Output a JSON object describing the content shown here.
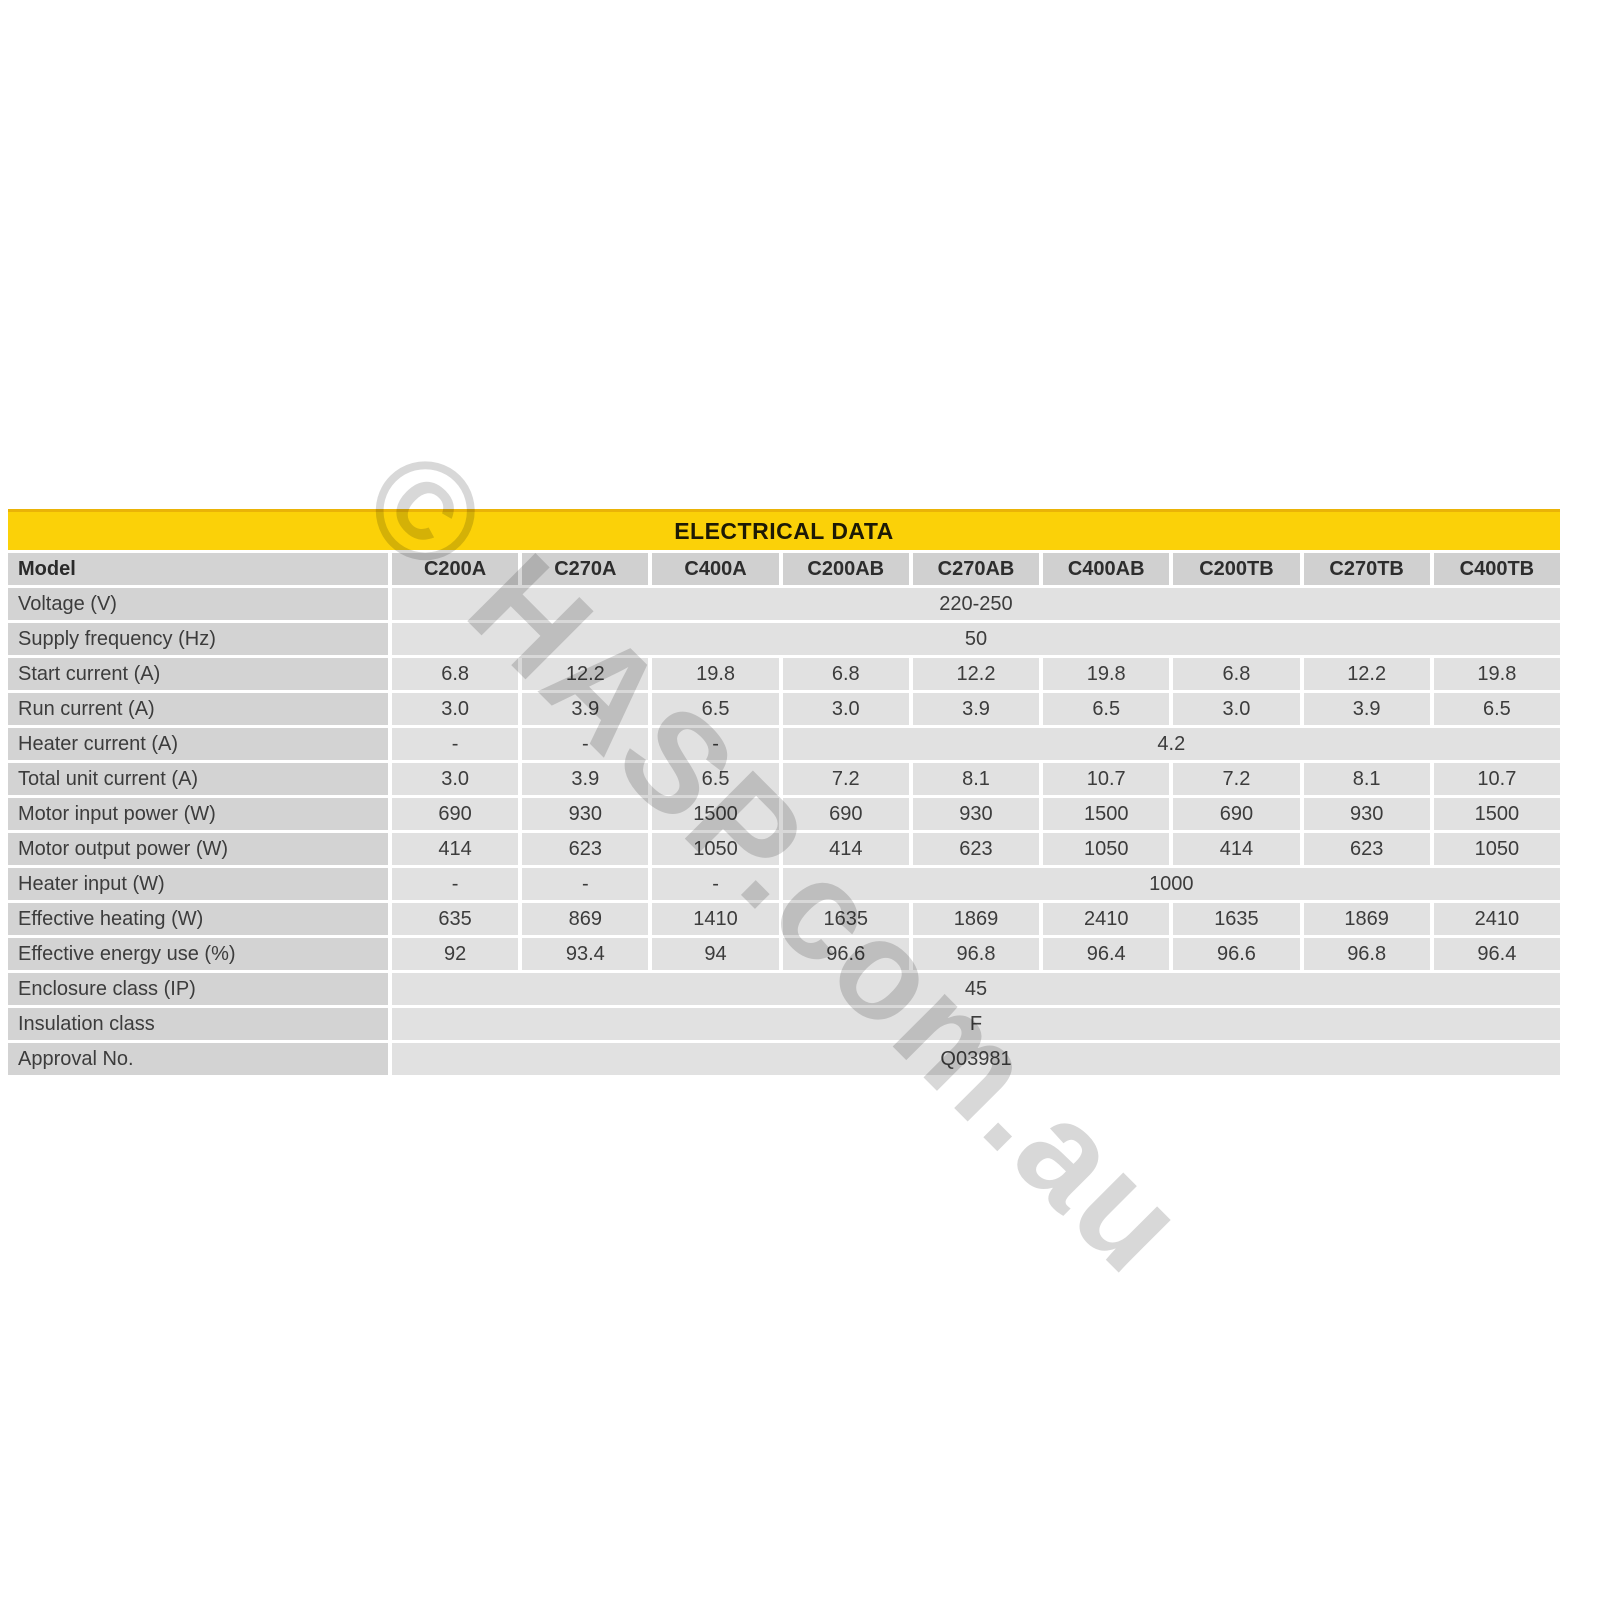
{
  "title": "ELECTRICAL DATA",
  "watermark": {
    "text": "© HASP.com.au"
  },
  "colors": {
    "accent_yellow": "#fbd108",
    "accent_yellow_edge": "#eab307",
    "title_text": "#1d1a05",
    "label_bg": "#d3d3d3",
    "header_cell_bg": "#d0d0d0",
    "cell_bg": "#e1e1e1",
    "text": "#3c3c3c",
    "watermark_gray": "#d8d8d8"
  },
  "table": {
    "model_label": "Model",
    "models": [
      "C200A",
      "C270A",
      "C400A",
      "C200AB",
      "C270AB",
      "C400AB",
      "C200TB",
      "C270TB",
      "C400TB"
    ],
    "rows": [
      {
        "label": "Voltage (V)",
        "cells": [
          {
            "v": "220-250",
            "span": 9
          }
        ]
      },
      {
        "label": "Supply frequency (Hz)",
        "cells": [
          {
            "v": "50",
            "span": 9
          }
        ]
      },
      {
        "label": "Start current (A)",
        "cells": [
          {
            "v": "6.8"
          },
          {
            "v": "12.2"
          },
          {
            "v": "19.8"
          },
          {
            "v": "6.8"
          },
          {
            "v": "12.2"
          },
          {
            "v": "19.8"
          },
          {
            "v": "6.8"
          },
          {
            "v": "12.2"
          },
          {
            "v": "19.8"
          }
        ]
      },
      {
        "label": "Run current (A)",
        "cells": [
          {
            "v": "3.0"
          },
          {
            "v": "3.9"
          },
          {
            "v": "6.5"
          },
          {
            "v": "3.0"
          },
          {
            "v": "3.9"
          },
          {
            "v": "6.5"
          },
          {
            "v": "3.0"
          },
          {
            "v": "3.9"
          },
          {
            "v": "6.5"
          }
        ]
      },
      {
        "label": "Heater current (A)",
        "cells": [
          {
            "v": "-"
          },
          {
            "v": "-"
          },
          {
            "v": "-"
          },
          {
            "v": "4.2",
            "span": 6
          }
        ]
      },
      {
        "label": "Total unit current (A)",
        "cells": [
          {
            "v": "3.0"
          },
          {
            "v": "3.9"
          },
          {
            "v": "6.5"
          },
          {
            "v": "7.2"
          },
          {
            "v": "8.1"
          },
          {
            "v": "10.7"
          },
          {
            "v": "7.2"
          },
          {
            "v": "8.1"
          },
          {
            "v": "10.7"
          }
        ]
      },
      {
        "label": "Motor input power (W)",
        "cells": [
          {
            "v": "690"
          },
          {
            "v": "930"
          },
          {
            "v": "1500"
          },
          {
            "v": "690"
          },
          {
            "v": "930"
          },
          {
            "v": "1500"
          },
          {
            "v": "690"
          },
          {
            "v": "930"
          },
          {
            "v": "1500"
          }
        ]
      },
      {
        "label": "Motor output power (W)",
        "cells": [
          {
            "v": "414"
          },
          {
            "v": "623"
          },
          {
            "v": "1050"
          },
          {
            "v": "414"
          },
          {
            "v": "623"
          },
          {
            "v": "1050"
          },
          {
            "v": "414"
          },
          {
            "v": "623"
          },
          {
            "v": "1050"
          }
        ]
      },
      {
        "label": "Heater input (W)",
        "cells": [
          {
            "v": "-"
          },
          {
            "v": "-"
          },
          {
            "v": "-"
          },
          {
            "v": "1000",
            "span": 6
          }
        ]
      },
      {
        "label": "Effective heating (W)",
        "cells": [
          {
            "v": "635"
          },
          {
            "v": "869"
          },
          {
            "v": "1410"
          },
          {
            "v": "1635"
          },
          {
            "v": "1869"
          },
          {
            "v": "2410"
          },
          {
            "v": "1635"
          },
          {
            "v": "1869"
          },
          {
            "v": "2410"
          }
        ]
      },
      {
        "label": "Effective energy use (%)",
        "cells": [
          {
            "v": "92"
          },
          {
            "v": "93.4"
          },
          {
            "v": "94"
          },
          {
            "v": "96.6"
          },
          {
            "v": "96.8"
          },
          {
            "v": "96.4"
          },
          {
            "v": "96.6"
          },
          {
            "v": "96.8"
          },
          {
            "v": "96.4"
          }
        ]
      },
      {
        "label": "Enclosure class (IP)",
        "cells": [
          {
            "v": "45",
            "span": 9
          }
        ]
      },
      {
        "label": "Insulation class",
        "cells": [
          {
            "v": "F",
            "span": 9
          }
        ]
      },
      {
        "label": "Approval No.",
        "cells": [
          {
            "v": "Q03981",
            "span": 9
          }
        ]
      }
    ]
  }
}
